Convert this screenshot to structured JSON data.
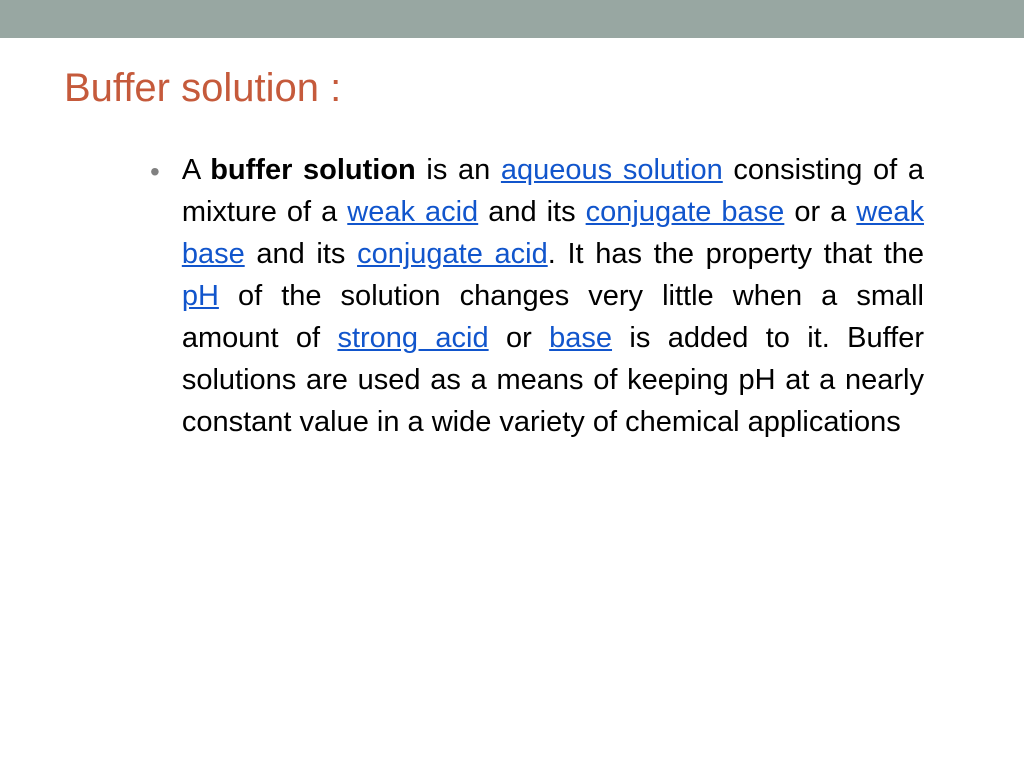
{
  "colors": {
    "top_bar": "#98a7a2",
    "title": "#c55a3b",
    "body_text": "#000000",
    "link": "#1155cc",
    "bullet": "#808080",
    "background": "#ffffff"
  },
  "typography": {
    "title_fontsize": 40,
    "body_fontsize": 29,
    "line_height": 42,
    "font_family": "Arial"
  },
  "title": "Buffer solution :",
  "bullet_char": "•",
  "paragraph": {
    "t1": "  A ",
    "bold1": "buffer solution",
    "t2": " is an ",
    "link1": "aqueous solution",
    "t3": " consisting of a mixture of a ",
    "link2": "weak acid",
    "t4": " and its ",
    "link3": "conjugate base",
    "t5": " or a ",
    "link4": "weak base",
    "t6": " and its ",
    "link5": "conjugate acid",
    "t7": ". It has the property that the ",
    "link6": "pH",
    "t8": " of the solution changes very little when a small amount of ",
    "link7": "strong acid",
    "t9": " or ",
    "link8": "base",
    "t10": " is added to it. Buffer solutions are used as a means of keeping pH at a nearly constant value in a wide variety of chemical applications"
  }
}
